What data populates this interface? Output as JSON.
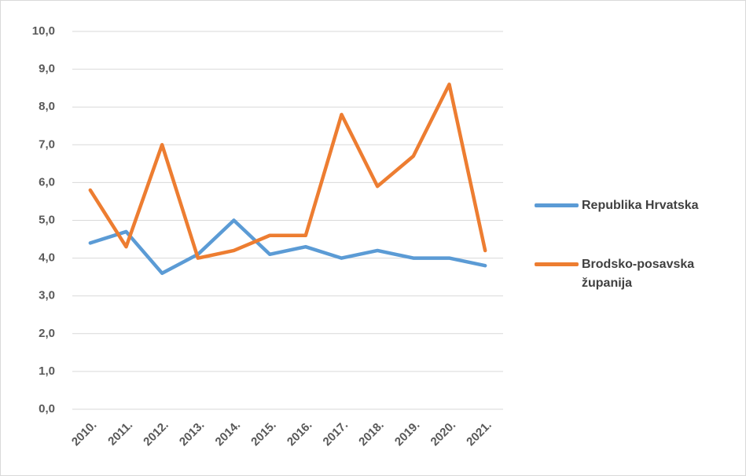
{
  "chart_data": {
    "type": "line",
    "categories": [
      "2010.",
      "2011.",
      "2012.",
      "2013.",
      "2014.",
      "2015.",
      "2016.",
      "2017.",
      "2018.",
      "2019.",
      "2020.",
      "2021."
    ],
    "series": [
      {
        "name": "Republika Hrvatska",
        "color": "#5b9bd5",
        "values": [
          4.4,
          4.7,
          3.6,
          4.1,
          5.0,
          4.1,
          4.3,
          4.0,
          4.2,
          4.0,
          4.0,
          3.8
        ]
      },
      {
        "name": "Brodsko-posavska županija",
        "color": "#ed7d31",
        "values": [
          5.8,
          4.3,
          7.0,
          4.0,
          4.2,
          4.6,
          4.6,
          7.8,
          5.9,
          6.7,
          8.6,
          4.2
        ]
      }
    ],
    "ylim": [
      0,
      10
    ],
    "yticks": [
      {
        "value": 0,
        "label": "0,0"
      },
      {
        "value": 1,
        "label": "1,0"
      },
      {
        "value": 2,
        "label": "2,0"
      },
      {
        "value": 3,
        "label": "3,0"
      },
      {
        "value": 4,
        "label": "4,0"
      },
      {
        "value": 5,
        "label": "5,0"
      },
      {
        "value": 6,
        "label": "6,0"
      },
      {
        "value": 7,
        "label": "7,0"
      },
      {
        "value": 8,
        "label": "8,0"
      },
      {
        "value": 9,
        "label": "9,0"
      },
      {
        "value": 10,
        "label": "10,0"
      }
    ],
    "grid": true,
    "legend": "right"
  }
}
